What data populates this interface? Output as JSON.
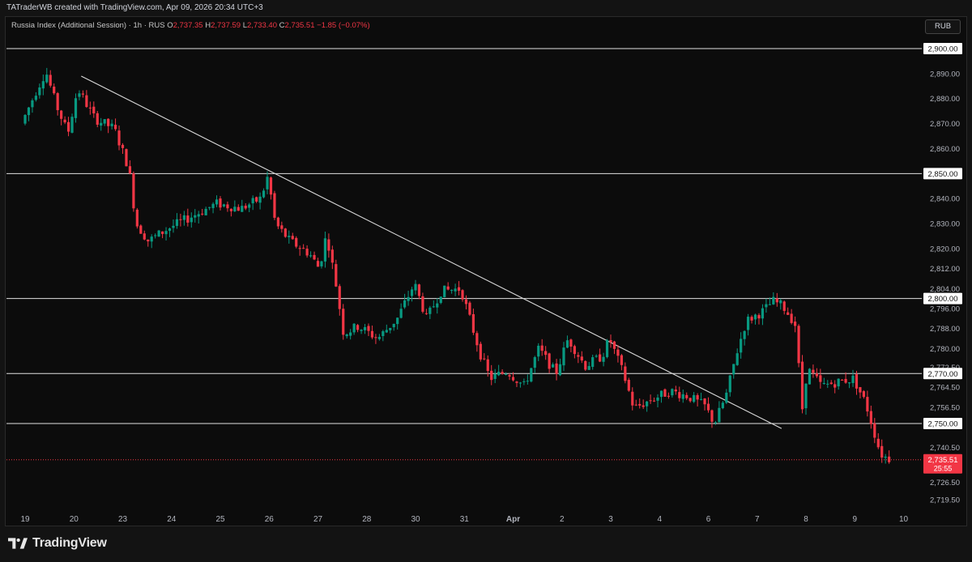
{
  "header": {
    "credit": "TATraderWB created with TradingView.com, Apr 09, 2026 20:34 UTC+3"
  },
  "legend": {
    "symbol": "Russia Index (Additional Session) · 1h · RUS",
    "o_label": "O",
    "o": "2,737.35",
    "h_label": "H",
    "h": "2,737.59",
    "l_label": "L",
    "l": "2,733.40",
    "c_label": "C",
    "c": "2,735.51",
    "change": "−1.85 (−0.07%)"
  },
  "currency": "RUB",
  "brand": {
    "name": "TradingView"
  },
  "colors": {
    "up": "#089981",
    "down": "#f23645",
    "line": "#e0e0e0",
    "background": "#0c0c0c"
  },
  "chart_data": {
    "type": "candlestick",
    "x_ticks": [
      {
        "label": "19",
        "day": 0
      },
      {
        "label": "20",
        "day": 1
      },
      {
        "label": "23",
        "day": 2
      },
      {
        "label": "24",
        "day": 3
      },
      {
        "label": "25",
        "day": 4
      },
      {
        "label": "26",
        "day": 5
      },
      {
        "label": "27",
        "day": 6
      },
      {
        "label": "28",
        "day": 7
      },
      {
        "label": "30",
        "day": 8
      },
      {
        "label": "31",
        "day": 9
      },
      {
        "label": "Apr",
        "day": 10
      },
      {
        "label": "2",
        "day": 11
      },
      {
        "label": "3",
        "day": 12
      },
      {
        "label": "4",
        "day": 13
      },
      {
        "label": "6",
        "day": 14
      },
      {
        "label": "7",
        "day": 15
      },
      {
        "label": "8",
        "day": 16
      },
      {
        "label": "9",
        "day": 17
      },
      {
        "label": "10",
        "day": 18
      }
    ],
    "y_ticks": [
      "2,890.00",
      "2,880.00",
      "2,870.00",
      "2,860.00",
      "2,840.00",
      "2,830.00",
      "2,820.00",
      "2,812.00",
      "2,804.00",
      "2,796.00",
      "2,788.00",
      "2,780.00",
      "2,772.50",
      "2,764.50",
      "2,756.50",
      "2,740.50",
      "2,726.50",
      "2,719.50"
    ],
    "horizontal_levels": [
      {
        "label": "2,900.00",
        "value": 2900
      },
      {
        "label": "2,850.00",
        "value": 2850
      },
      {
        "label": "2,800.00",
        "value": 2800
      },
      {
        "label": "2,770.00",
        "value": 2770
      },
      {
        "label": "2,750.00",
        "value": 2750
      }
    ],
    "trendline": {
      "from": {
        "day": 1.15,
        "price": 2889
      },
      "to": {
        "day": 15.5,
        "price": 2748
      }
    },
    "last_price": {
      "label": "2,735.51",
      "value": 2735.51,
      "countdown": "25:55"
    },
    "path": [
      [
        0.0,
        2870
      ],
      [
        0.3,
        2883
      ],
      [
        0.5,
        2891
      ],
      [
        0.7,
        2878
      ],
      [
        0.95,
        2866
      ],
      [
        1.15,
        2884
      ],
      [
        1.5,
        2872
      ],
      [
        1.9,
        2868
      ],
      [
        2.2,
        2852
      ],
      [
        2.35,
        2830
      ],
      [
        2.6,
        2823
      ],
      [
        3.0,
        2828
      ],
      [
        3.5,
        2833
      ],
      [
        4.0,
        2838
      ],
      [
        4.5,
        2836
      ],
      [
        4.9,
        2840
      ],
      [
        5.05,
        2849
      ],
      [
        5.2,
        2830
      ],
      [
        5.5,
        2823
      ],
      [
        5.9,
        2818
      ],
      [
        6.1,
        2812
      ],
      [
        6.25,
        2826
      ],
      [
        6.45,
        2805
      ],
      [
        6.6,
        2786
      ],
      [
        6.9,
        2789
      ],
      [
        7.3,
        2784
      ],
      [
        7.7,
        2792
      ],
      [
        8.05,
        2806
      ],
      [
        8.3,
        2792
      ],
      [
        8.6,
        2803
      ],
      [
        9.0,
        2804
      ],
      [
        9.4,
        2778
      ],
      [
        9.6,
        2768
      ],
      [
        9.95,
        2771
      ],
      [
        10.3,
        2765
      ],
      [
        10.6,
        2780
      ],
      [
        10.95,
        2770
      ],
      [
        11.2,
        2784
      ],
      [
        11.55,
        2773
      ],
      [
        11.9,
        2777
      ],
      [
        12.05,
        2784
      ],
      [
        12.35,
        2769
      ],
      [
        12.55,
        2756
      ],
      [
        12.95,
        2760
      ],
      [
        13.3,
        2763
      ],
      [
        13.65,
        2761
      ],
      [
        14.0,
        2757
      ],
      [
        14.2,
        2750
      ],
      [
        14.45,
        2762
      ],
      [
        14.65,
        2778
      ],
      [
        14.85,
        2791
      ],
      [
        15.2,
        2795
      ],
      [
        15.4,
        2799
      ],
      [
        15.6,
        2797
      ],
      [
        15.85,
        2790
      ],
      [
        16.0,
        2756
      ],
      [
        16.1,
        2772
      ],
      [
        16.4,
        2765
      ],
      [
        16.8,
        2767
      ],
      [
        17.05,
        2768
      ],
      [
        17.3,
        2758
      ],
      [
        17.45,
        2748
      ],
      [
        17.6,
        2738
      ],
      [
        17.75,
        2736
      ]
    ]
  }
}
